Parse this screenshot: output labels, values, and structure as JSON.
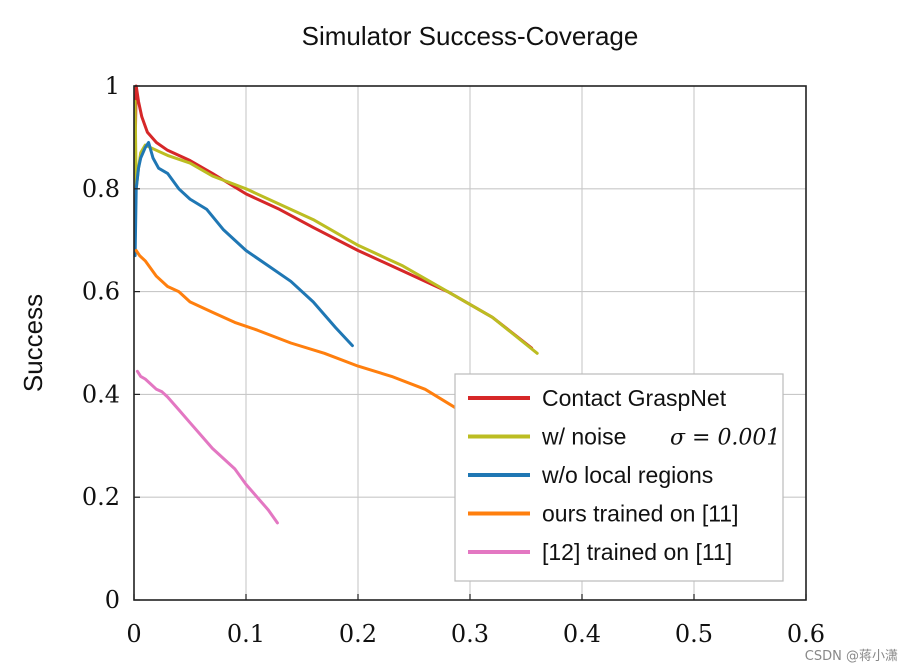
{
  "chart_data": {
    "type": "line",
    "title": "Simulator Success-Coverage",
    "xlabel": "",
    "ylabel": "Success",
    "xlim": [
      0,
      0.6
    ],
    "ylim": [
      0,
      1
    ],
    "xticks": [
      "0",
      "0.1",
      "0.2",
      "0.3",
      "0.4",
      "0.5",
      "0.6"
    ],
    "yticks": [
      "0",
      "0.2",
      "0.4",
      "0.6",
      "0.8",
      "1"
    ],
    "grid": true,
    "legend_position": "bottom-right",
    "series": [
      {
        "name": "Contact GraspNet",
        "color": "#d62728",
        "x": [
          0.001,
          0.002,
          0.004,
          0.007,
          0.012,
          0.02,
          0.03,
          0.05,
          0.07,
          0.1,
          0.13,
          0.16,
          0.2,
          0.24,
          0.28,
          0.32,
          0.355
        ],
        "y": [
          0.88,
          1.0,
          0.97,
          0.94,
          0.91,
          0.89,
          0.875,
          0.855,
          0.83,
          0.79,
          0.76,
          0.725,
          0.68,
          0.64,
          0.6,
          0.55,
          0.49
        ]
      },
      {
        "name": "w/ noise",
        "math": "σ = 0.001",
        "color": "#bcbd22",
        "x": [
          0.001,
          0.002,
          0.004,
          0.006,
          0.01,
          0.015,
          0.02,
          0.03,
          0.05,
          0.07,
          0.1,
          0.13,
          0.16,
          0.2,
          0.24,
          0.28,
          0.32,
          0.36
        ],
        "y": [
          0.97,
          0.8,
          0.84,
          0.87,
          0.885,
          0.88,
          0.875,
          0.865,
          0.85,
          0.825,
          0.8,
          0.77,
          0.74,
          0.69,
          0.65,
          0.6,
          0.55,
          0.48
        ]
      },
      {
        "name": "w/o local regions",
        "color": "#1f77b4",
        "x": [
          0.001,
          0.002,
          0.004,
          0.006,
          0.008,
          0.01,
          0.013,
          0.017,
          0.022,
          0.03,
          0.04,
          0.05,
          0.065,
          0.08,
          0.1,
          0.12,
          0.14,
          0.16,
          0.18,
          0.195
        ],
        "y": [
          0.67,
          0.8,
          0.84,
          0.86,
          0.87,
          0.88,
          0.89,
          0.86,
          0.84,
          0.83,
          0.8,
          0.78,
          0.76,
          0.72,
          0.68,
          0.65,
          0.62,
          0.58,
          0.53,
          0.495
        ]
      },
      {
        "name": "ours trained on [11]",
        "color": "#ff7f0e",
        "x": [
          0.002,
          0.005,
          0.01,
          0.02,
          0.03,
          0.04,
          0.05,
          0.07,
          0.09,
          0.11,
          0.14,
          0.17,
          0.2,
          0.23,
          0.26,
          0.29
        ],
        "y": [
          0.68,
          0.67,
          0.66,
          0.63,
          0.61,
          0.6,
          0.58,
          0.56,
          0.54,
          0.525,
          0.5,
          0.48,
          0.455,
          0.435,
          0.41,
          0.37
        ]
      },
      {
        "name": "[12] trained on [11]",
        "color": "#e377c2",
        "x": [
          0.003,
          0.006,
          0.01,
          0.015,
          0.02,
          0.025,
          0.03,
          0.04,
          0.05,
          0.06,
          0.07,
          0.08,
          0.09,
          0.1,
          0.11,
          0.12,
          0.128
        ],
        "y": [
          0.445,
          0.435,
          0.43,
          0.42,
          0.41,
          0.405,
          0.395,
          0.37,
          0.345,
          0.32,
          0.295,
          0.275,
          0.255,
          0.225,
          0.2,
          0.175,
          0.15
        ]
      }
    ]
  },
  "watermark": "CSDN @蒋小潇"
}
